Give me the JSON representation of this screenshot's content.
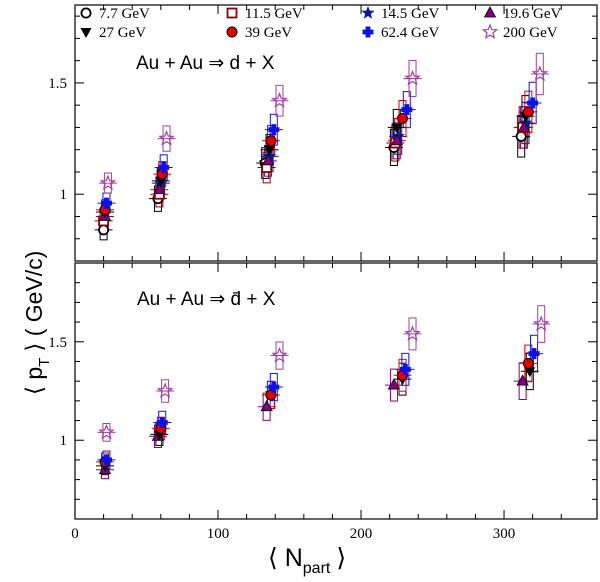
{
  "legend": [
    {
      "label": "7.7 GeV",
      "marker": "circle-open",
      "color": "#000000"
    },
    {
      "label": "11.5 GeV",
      "marker": "square-open",
      "color": "#8b0000"
    },
    {
      "label": "14.5 GeV",
      "marker": "star-filled",
      "color": "#0a1a9c"
    },
    {
      "label": "19.6 GeV",
      "marker": "triangle-up",
      "color": "#800080"
    },
    {
      "label": "27 GeV",
      "marker": "triangle-down",
      "color": "#000000"
    },
    {
      "label": "39 GeV",
      "marker": "circle-filled",
      "color": "#e00000"
    },
    {
      "label": "62.4 GeV",
      "marker": "cross-filled",
      "color": "#1010e0"
    },
    {
      "label": "200 GeV",
      "marker": "star-open",
      "color": "#a040a0"
    }
  ],
  "chart_data": [
    {
      "type": "scatter",
      "panel": "top",
      "annotation": "Au + Au ⇒ d + X",
      "xlim": [
        0,
        365
      ],
      "ylim": [
        0.7,
        1.85
      ],
      "yticks": [
        "1",
        "1.5"
      ],
      "series": [
        {
          "name": "7.7 GeV",
          "x": [
            20,
            58,
            133,
            223,
            312
          ],
          "y": [
            0.84,
            0.98,
            1.14,
            1.21,
            1.26
          ]
        },
        {
          "name": "11.5 GeV",
          "x": [
            20,
            59,
            134,
            224,
            313
          ],
          "y": [
            0.88,
            1.0,
            1.12,
            1.23,
            1.3
          ]
        },
        {
          "name": "14.5 GeV",
          "x": [
            21,
            60,
            136,
            226,
            315
          ],
          "y": [
            0.92,
            1.05,
            1.17,
            1.26,
            1.32
          ]
        },
        {
          "name": "19.6 GeV",
          "x": [
            21,
            59,
            135,
            225,
            314
          ],
          "y": [
            0.9,
            1.02,
            1.15,
            1.24,
            1.3
          ]
        },
        {
          "name": "27 GeV",
          "x": [
            21,
            60,
            136,
            225,
            315
          ],
          "y": [
            0.92,
            1.06,
            1.2,
            1.3,
            1.35
          ]
        },
        {
          "name": "39 GeV",
          "x": [
            21,
            61,
            137,
            229,
            317
          ],
          "y": [
            0.93,
            1.09,
            1.24,
            1.34,
            1.37
          ]
        },
        {
          "name": "62.4 GeV",
          "x": [
            22,
            62,
            139,
            232,
            320
          ],
          "y": [
            0.96,
            1.12,
            1.29,
            1.38,
            1.41
          ]
        },
        {
          "name": "200 GeV",
          "x": [
            23,
            64,
            143,
            236,
            325
          ],
          "y": [
            1.05,
            1.25,
            1.42,
            1.52,
            1.54
          ]
        }
      ]
    },
    {
      "type": "scatter",
      "panel": "bottom",
      "annotation": "Au + Au ⇒ d̄ + X",
      "xlim": [
        0,
        365
      ],
      "ylim": [
        0.6,
        1.9
      ],
      "yticks": [
        "1",
        "1.5"
      ],
      "series": [
        {
          "name": "19.6 GeV",
          "x": [
            21,
            58,
            134,
            223,
            313
          ],
          "y": [
            0.85,
            1.02,
            1.17,
            1.28,
            1.3
          ]
        },
        {
          "name": "27 GeV",
          "x": [
            21,
            59,
            137,
            229,
            318
          ],
          "y": [
            0.87,
            1.03,
            1.23,
            1.31,
            1.35
          ]
        },
        {
          "name": "39 GeV",
          "x": [
            21,
            60,
            137,
            229,
            317
          ],
          "y": [
            0.89,
            1.06,
            1.23,
            1.33,
            1.39
          ]
        },
        {
          "name": "62.4 GeV",
          "x": [
            22,
            61,
            139,
            231,
            321
          ],
          "y": [
            0.9,
            1.09,
            1.27,
            1.36,
            1.44
          ]
        },
        {
          "name": "200 GeV",
          "x": [
            22,
            63,
            143,
            236,
            326
          ],
          "y": [
            1.04,
            1.25,
            1.43,
            1.54,
            1.59
          ]
        }
      ]
    }
  ],
  "xticks": [
    "0",
    "100",
    "200",
    "300"
  ],
  "x_axis_label": "⟨ N",
  "x_axis_label_sub": "part",
  "x_axis_label_close": "⟩",
  "y_axis_label": "⟨ p",
  "y_axis_label_sub": "T",
  "y_axis_label_rest": "⟩ ( GeV/c)"
}
